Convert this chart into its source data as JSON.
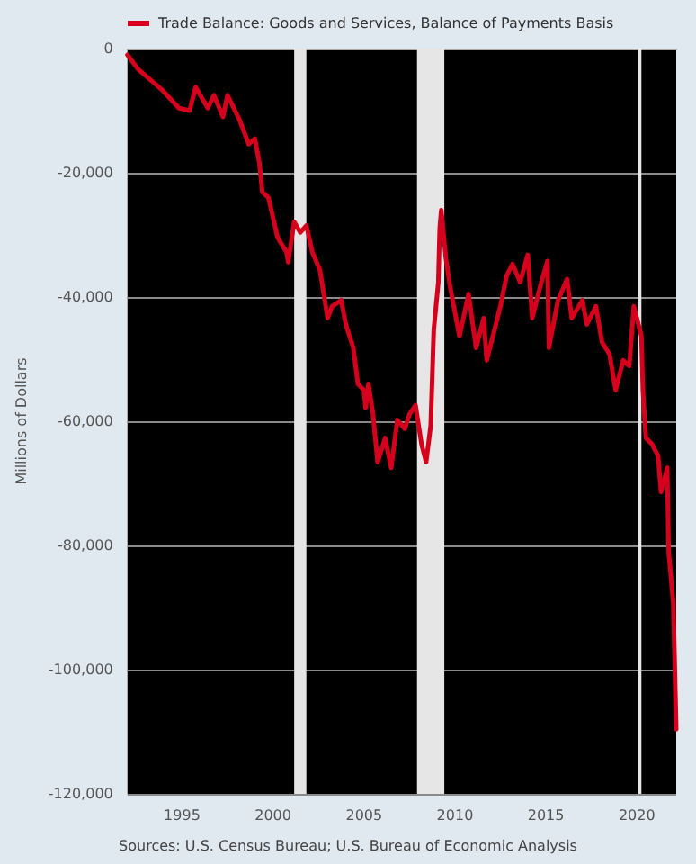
{
  "chart_data": {
    "type": "line",
    "ylabel": "Millions of Dollars",
    "annotations": [
      "Sources: U.S. Census Bureau; U.S. Bureau of Economic Analysis"
    ],
    "x": [
      "1992-01",
      "1992-08",
      "1993-12",
      "1994-11",
      "1995-06",
      "1995-10",
      "1996-06",
      "1996-10",
      "1997-04",
      "1997-07",
      "1998-03",
      "1998-09",
      "1999-01",
      "1999-04",
      "1999-06",
      "1999-10",
      "2000-04",
      "2000-10",
      "2000-11",
      "2001-03",
      "2001-07",
      "2001-11",
      "2002-03",
      "2002-08",
      "2003-01",
      "2003-04",
      "2003-10",
      "2004-01",
      "2004-06",
      "2004-09",
      "2005-01",
      "2005-02",
      "2005-04",
      "2005-07",
      "2005-10",
      "2006-03",
      "2006-07",
      "2006-11",
      "2007-04",
      "2007-07",
      "2007-11",
      "2008-03",
      "2008-06",
      "2008-09",
      "2008-11",
      "2009-02",
      "2009-03",
      "2009-04",
      "2009-07",
      "2009-10",
      "2010-04",
      "2010-10",
      "2011-03",
      "2011-08",
      "2011-10",
      "2012-07",
      "2012-11",
      "2013-03",
      "2013-08",
      "2014-01",
      "2014-04",
      "2014-10",
      "2015-02",
      "2015-03",
      "2015-09",
      "2016-03",
      "2016-06",
      "2017-01",
      "2017-04",
      "2017-10",
      "2018-02",
      "2018-07",
      "2018-11",
      "2019-04",
      "2019-08",
      "2019-11",
      "2020-04",
      "2020-05",
      "2020-07",
      "2020-11",
      "2021-03",
      "2021-05",
      "2021-09",
      "2021-10",
      "2022-01",
      "2022-03"
    ],
    "series": [
      {
        "name": "Trade Balance: Goods and Services, Balance of Payments Basis",
        "color": "#d6001c",
        "values": [
          -1000,
          -3300,
          -6700,
          -9600,
          -10000,
          -6200,
          -9600,
          -7500,
          -11000,
          -7500,
          -11500,
          -15400,
          -14500,
          -18300,
          -23100,
          -24000,
          -30400,
          -32800,
          -34400,
          -27900,
          -29600,
          -28500,
          -32800,
          -35700,
          -43400,
          -41500,
          -40500,
          -44400,
          -48200,
          -54000,
          -55000,
          -57900,
          -54000,
          -58900,
          -66600,
          -62700,
          -67500,
          -59800,
          -61200,
          -58900,
          -57400,
          -63700,
          -66600,
          -60700,
          -45300,
          -37600,
          -28900,
          -26000,
          -33700,
          -38600,
          -46300,
          -39500,
          -48200,
          -43400,
          -50200,
          -41500,
          -36600,
          -34700,
          -37600,
          -33200,
          -43400,
          -37600,
          -34200,
          -48200,
          -40500,
          -37100,
          -43400,
          -40500,
          -44400,
          -41500,
          -47300,
          -49200,
          -55000,
          -50200,
          -51100,
          -41500,
          -46300,
          -55000,
          -62700,
          -63700,
          -65600,
          -71400,
          -67500,
          -81100,
          -89300,
          -109600
        ]
      }
    ],
    "xlim": [
      "1992-01",
      "2022-03"
    ],
    "xticks": [
      "1995",
      "2000",
      "2005",
      "2010",
      "2015",
      "2020"
    ],
    "ylim": [
      -120000,
      0
    ],
    "yticks": [
      {
        "value": -120000,
        "label": "-120,000"
      },
      {
        "value": -100000,
        "label": "-100,000"
      },
      {
        "value": -80000,
        "label": "-80,000"
      },
      {
        "value": -60000,
        "label": "-60,000"
      },
      {
        "value": -40000,
        "label": "-40,000"
      },
      {
        "value": -20000,
        "label": "-20,000"
      },
      0
    ],
    "bands": [
      {
        "axis": "x",
        "from": "2001-03",
        "to": "2001-11",
        "color": "#e6e6e6"
      },
      {
        "axis": "x",
        "from": "2007-12",
        "to": "2009-06",
        "color": "#e6e6e6"
      },
      {
        "axis": "x",
        "from": "2020-02",
        "to": "2020-04",
        "color": "#e6e6e6"
      }
    ],
    "grid": "y",
    "legend": "top left",
    "line_style": "solid"
  }
}
